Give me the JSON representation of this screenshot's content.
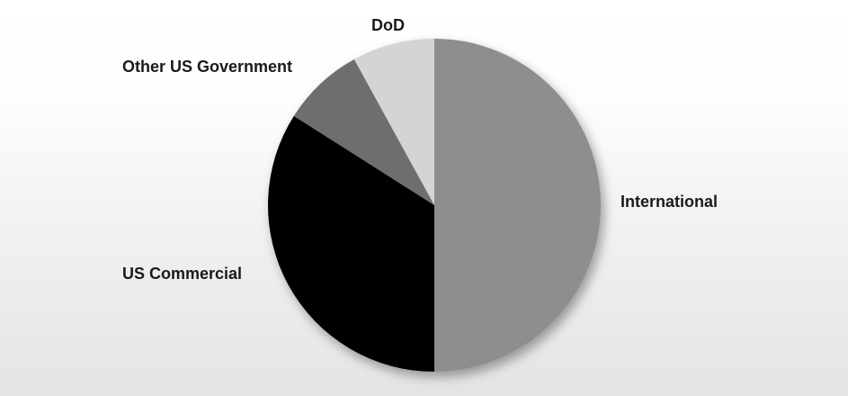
{
  "chart_data": {
    "type": "pie",
    "title": "",
    "slices": [
      {
        "label": "International",
        "value": 50,
        "color": "#8e8e8e"
      },
      {
        "label": "US Commercial",
        "value": 34,
        "color": "#000000"
      },
      {
        "label": "Other US Government",
        "value": 8,
        "color": "#6e6e6e"
      },
      {
        "label": "DoD",
        "value": 8,
        "color": "#d4d4d4"
      }
    ],
    "start": "12 o'clock",
    "direction": "clockwise",
    "legend": "none"
  }
}
